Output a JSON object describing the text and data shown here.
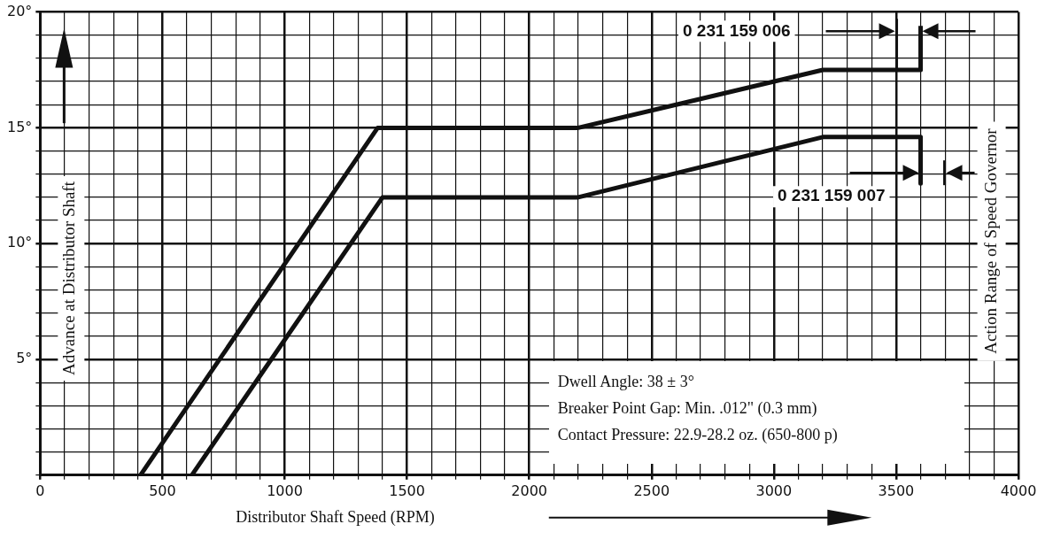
{
  "chart_data": {
    "type": "line",
    "xlabel": "Distributor Shaft Speed (RPM)",
    "ylabel": "Advance at Distributor Shaft",
    "series": [
      {
        "name": "0 231 159 006",
        "color": "#111111",
        "x": [
          410,
          1380,
          2200,
          3200,
          3600,
          3600
        ],
        "values": [
          0,
          15,
          15,
          17.5,
          17.5,
          19.4
        ]
      },
      {
        "name": "0 231 159 007",
        "color": "#111111",
        "x": [
          620,
          1400,
          2200,
          3200,
          3600,
          3600
        ],
        "values": [
          0,
          12,
          12,
          14.6,
          14.6,
          12.6
        ]
      }
    ],
    "annotations": [
      "Action Range of Speed Governor",
      "Dwell Angle: 38 ± 3°",
      "Breaker Point Gap: Min. .012\" (0.3 mm)",
      "Contact Pressure: 22.9-28.2 oz. (650-800 p)"
    ],
    "xlim": [
      0,
      4000
    ],
    "ylim": [
      0,
      20
    ],
    "xticks": [
      0,
      {
        "value": 100,
        "label": null
      },
      {
        "value": 200,
        "label": null
      },
      {
        "value": 300,
        "label": null
      },
      {
        "value": 400,
        "label": null
      },
      500,
      {
        "value": 600,
        "label": null
      },
      {
        "value": 700,
        "label": null
      },
      {
        "value": 800,
        "label": null
      },
      {
        "value": 900,
        "label": null
      },
      1000,
      {
        "value": 1100,
        "label": null
      },
      {
        "value": 1200,
        "label": null
      },
      {
        "value": 1300,
        "label": null
      },
      {
        "value": 1400,
        "label": null
      },
      1500,
      {
        "value": 1600,
        "label": null
      },
      {
        "value": 1700,
        "label": null
      },
      {
        "value": 1800,
        "label": null
      },
      {
        "value": 1900,
        "label": null
      },
      2000,
      {
        "value": 2100,
        "label": null
      },
      {
        "value": 2200,
        "label": null
      },
      {
        "value": 2300,
        "label": null
      },
      {
        "value": 2400,
        "label": null
      },
      2500,
      {
        "value": 2600,
        "label": null
      },
      {
        "value": 2700,
        "label": null
      },
      {
        "value": 2800,
        "label": null
      },
      {
        "value": 2900,
        "label": null
      },
      3000,
      {
        "value": 3100,
        "label": null
      },
      {
        "value": 3200,
        "label": null
      },
      {
        "value": 3300,
        "label": null
      },
      {
        "value": 3400,
        "label": null
      },
      3500,
      {
        "value": 3600,
        "label": null
      },
      {
        "value": 3700,
        "label": null
      },
      {
        "value": 3800,
        "label": null
      },
      {
        "value": 3900,
        "label": null
      },
      4000
    ],
    "yticks": [
      {
        "value": 0,
        "label": null
      },
      {
        "value": 1,
        "label": null
      },
      {
        "value": 2,
        "label": null
      },
      {
        "value": 3,
        "label": null
      },
      {
        "value": 4,
        "label": null
      },
      {
        "value": 5,
        "label": "5°"
      },
      {
        "value": 6,
        "label": null
      },
      {
        "value": 7,
        "label": null
      },
      {
        "value": 8,
        "label": null
      },
      {
        "value": 9,
        "label": null
      },
      {
        "value": 10,
        "label": "10°"
      },
      {
        "value": 11,
        "label": null
      },
      {
        "value": 12,
        "label": null
      },
      {
        "value": 13,
        "label": null
      },
      {
        "value": 14,
        "label": null
      },
      {
        "value": 15,
        "label": "15°"
      },
      {
        "value": 16,
        "label": null
      },
      {
        "value": 17,
        "label": null
      },
      {
        "value": 18,
        "label": null
      },
      {
        "value": 19,
        "label": null
      },
      {
        "value": 20,
        "label": "20°"
      }
    ],
    "grid": true,
    "marker": "none",
    "line_style": "solid",
    "legend": "top right"
  }
}
